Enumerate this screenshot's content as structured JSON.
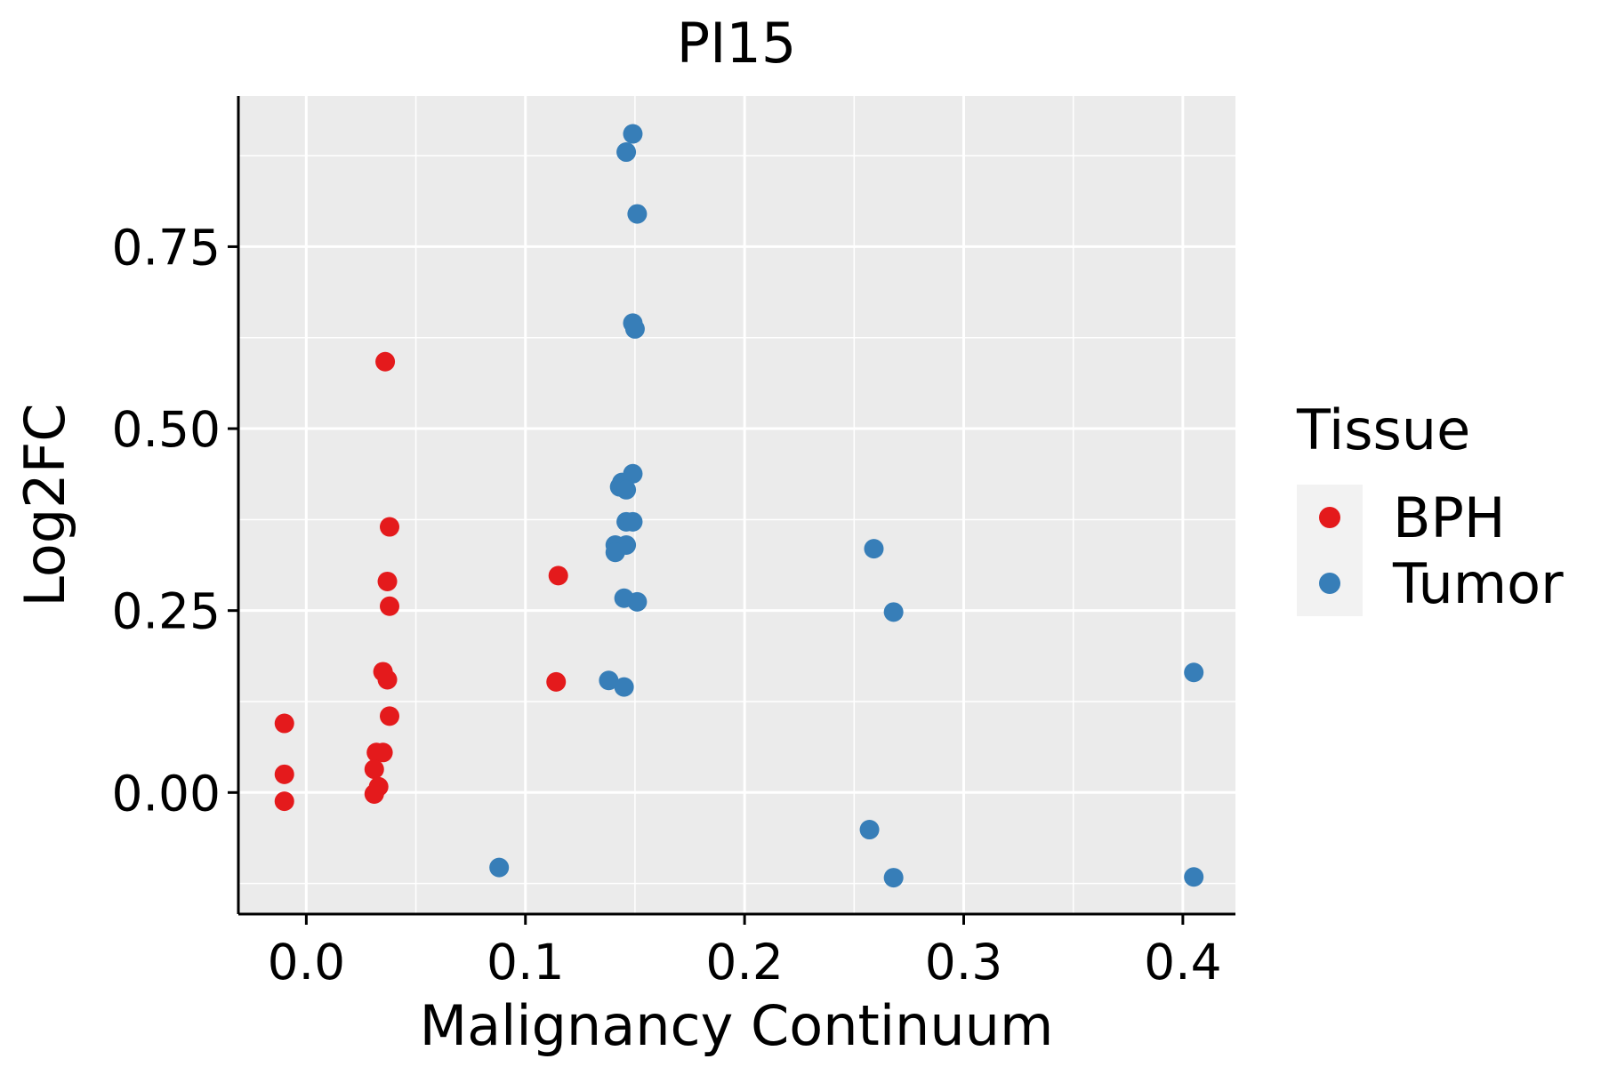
{
  "chart_data": {
    "type": "scatter",
    "title": "PI15",
    "xlabel": "Malignancy Continuum",
    "ylabel": "Log2FC",
    "xlim": [
      -0.031,
      0.424
    ],
    "ylim": [
      -0.167,
      0.957
    ],
    "x_ticks": [
      0.0,
      0.1,
      0.2,
      0.3,
      0.4
    ],
    "x_tick_labels": [
      "0.0",
      "0.1",
      "0.2",
      "0.3",
      "0.4"
    ],
    "y_ticks": [
      0.0,
      0.25,
      0.5,
      0.75
    ],
    "y_tick_labels": [
      "0.00",
      "0.25",
      "0.50",
      "0.75"
    ],
    "grid": true,
    "legend": {
      "title": "Tissue",
      "position": "right"
    },
    "series": [
      {
        "name": "BPH",
        "color": "#E41A1C",
        "points": [
          {
            "x": -0.01,
            "y": 0.095
          },
          {
            "x": -0.01,
            "y": 0.025
          },
          {
            "x": -0.01,
            "y": -0.012
          },
          {
            "x": 0.036,
            "y": 0.592
          },
          {
            "x": 0.038,
            "y": 0.365
          },
          {
            "x": 0.037,
            "y": 0.29
          },
          {
            "x": 0.038,
            "y": 0.256
          },
          {
            "x": 0.035,
            "y": 0.166
          },
          {
            "x": 0.037,
            "y": 0.155
          },
          {
            "x": 0.038,
            "y": 0.105
          },
          {
            "x": 0.032,
            "y": 0.055
          },
          {
            "x": 0.035,
            "y": 0.055
          },
          {
            "x": 0.031,
            "y": 0.032
          },
          {
            "x": 0.033,
            "y": 0.008
          },
          {
            "x": 0.031,
            "y": -0.002
          },
          {
            "x": 0.115,
            "y": 0.298
          },
          {
            "x": 0.114,
            "y": 0.152
          }
        ]
      },
      {
        "name": "Tumor",
        "color": "#377EB8",
        "points": [
          {
            "x": 0.149,
            "y": 0.905
          },
          {
            "x": 0.146,
            "y": 0.88
          },
          {
            "x": 0.151,
            "y": 0.795
          },
          {
            "x": 0.149,
            "y": 0.645
          },
          {
            "x": 0.15,
            "y": 0.637
          },
          {
            "x": 0.149,
            "y": 0.438
          },
          {
            "x": 0.144,
            "y": 0.426
          },
          {
            "x": 0.143,
            "y": 0.42
          },
          {
            "x": 0.146,
            "y": 0.416
          },
          {
            "x": 0.146,
            "y": 0.372
          },
          {
            "x": 0.149,
            "y": 0.372
          },
          {
            "x": 0.141,
            "y": 0.34
          },
          {
            "x": 0.146,
            "y": 0.34
          },
          {
            "x": 0.141,
            "y": 0.33
          },
          {
            "x": 0.145,
            "y": 0.267
          },
          {
            "x": 0.151,
            "y": 0.262
          },
          {
            "x": 0.138,
            "y": 0.154
          },
          {
            "x": 0.145,
            "y": 0.145
          },
          {
            "x": 0.088,
            "y": -0.103
          },
          {
            "x": 0.259,
            "y": 0.335
          },
          {
            "x": 0.268,
            "y": 0.248
          },
          {
            "x": 0.257,
            "y": -0.051
          },
          {
            "x": 0.268,
            "y": -0.117
          },
          {
            "x": 0.405,
            "y": 0.165
          },
          {
            "x": 0.405,
            "y": -0.116
          }
        ]
      }
    ]
  }
}
